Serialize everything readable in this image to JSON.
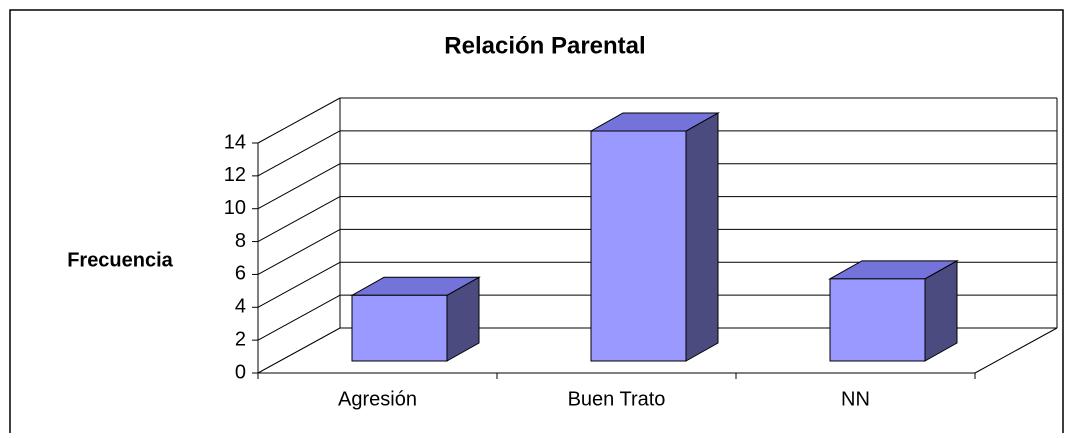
{
  "chart_data": {
    "type": "bar3d",
    "title": "Relación Parental",
    "y_label": "Frecuencia",
    "categories": [
      "Agresión",
      "Buen Trato",
      "NN"
    ],
    "values": [
      4,
      14,
      5
    ],
    "color": "#9999ff",
    "ylim": [
      0,
      14
    ],
    "yticks": [
      0,
      2,
      4,
      6,
      8,
      10,
      12,
      14
    ],
    "grid": true
  }
}
